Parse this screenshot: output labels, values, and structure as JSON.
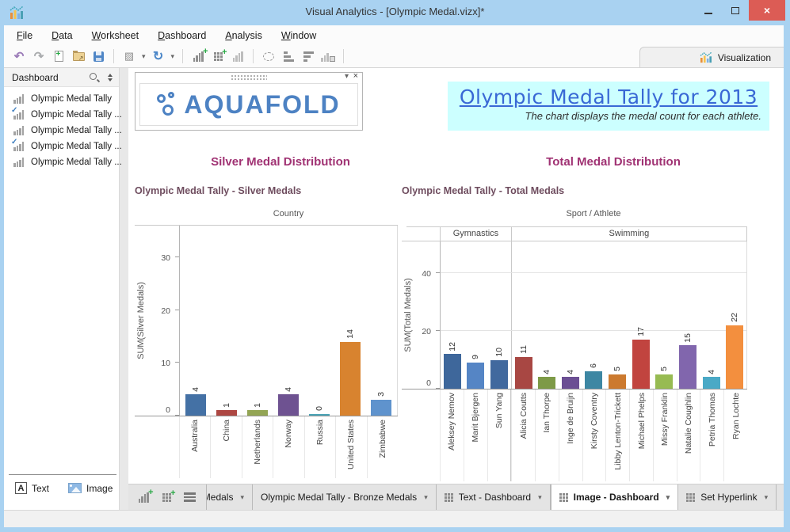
{
  "window": {
    "title": "Visual Analytics - [Olympic Medal.vizx]*"
  },
  "menu": {
    "items": [
      "File",
      "Data",
      "Worksheet",
      "Dashboard",
      "Analysis",
      "Window"
    ]
  },
  "toolbar": {
    "visualization_label": "Visualization",
    "icons": [
      "undo",
      "redo",
      "new-file",
      "open-folder",
      "save",
      "format",
      "refresh",
      "add-worksheet",
      "add-dashboard",
      "bar-chart",
      "lasso-select",
      "sort-ascending",
      "sort-descending",
      "export-chart"
    ]
  },
  "sidebar": {
    "header": "Dashboard",
    "items": [
      {
        "label": "Olympic Medal Tally",
        "checked": false
      },
      {
        "label": "Olympic Medal Tally ...",
        "checked": true
      },
      {
        "label": "Olympic Medal Tally ...",
        "checked": false
      },
      {
        "label": "Olympic Medal Tally ...",
        "checked": true
      },
      {
        "label": "Olympic Medal Tally ...",
        "checked": false
      }
    ],
    "buttons": {
      "text": "Text",
      "image": "Image"
    }
  },
  "dashboard": {
    "logo_text": "AQUAFOLD",
    "title": "Olympic Medal Tally for 2013",
    "subtitle": "The chart displays the medal count for each athlete.",
    "title_color": "#3968d5",
    "title_bg": "#ccffff",
    "heading_color": "#a03273"
  },
  "chart_data": [
    {
      "type": "bar",
      "section_heading": "Silver Medal Distribution",
      "title": "Olympic Medal Tally - Silver Medals",
      "xlabel": "Country",
      "ylabel": "SUM(Silver Medals)",
      "categories": [
        "Australia",
        "China",
        "Netherlands",
        "Norway",
        "Russia",
        "United States",
        "Zimbabwe"
      ],
      "values": [
        4,
        1,
        1,
        4,
        0,
        14,
        3
      ],
      "bar_colors": [
        "#4471a5",
        "#ad4742",
        "#93a554",
        "#6e5291",
        "#4aa3b5",
        "#d8832f",
        "#5f93cd"
      ],
      "yticks": [
        0,
        10,
        20,
        30
      ],
      "ylim": [
        0,
        36
      ],
      "grid": false,
      "legend": "none",
      "value_labels": true
    },
    {
      "type": "bar",
      "section_heading": "Total Medal Distribution",
      "title": "Olympic Medal Tally - Total Medals",
      "xlabel": "Sport / Athlete",
      "ylabel": "SUM(Total Medals)",
      "groups": [
        {
          "label": "Gymnastics",
          "categories": [
            "Aleksey Nemov",
            "Marit Bjergen",
            "Sun Yang"
          ],
          "values": [
            12,
            9,
            10
          ],
          "bar_colors": [
            "#3e679b",
            "#5585c5",
            "#41699e"
          ]
        },
        {
          "label": "Swimming",
          "categories": [
            "Alicia Coutts",
            "Ian Thorpe",
            "Inge de Bruijn",
            "Kirsty Coventry",
            "Libby Lenton-Trickett",
            "Michael Phelps",
            "Missy Franklin",
            "Natalie Coughlin",
            "Petria Thomas",
            "Ryan Lochte"
          ],
          "values": [
            11,
            4,
            4,
            6,
            5,
            17,
            5,
            15,
            4,
            22
          ],
          "bar_colors": [
            "#a84743",
            "#7d9a47",
            "#6b4f93",
            "#3d87a3",
            "#cc7a2f",
            "#c1443f",
            "#97bb52",
            "#8166ad",
            "#4aa9c6",
            "#f38f3e"
          ]
        }
      ],
      "yticks": [
        0,
        20,
        40
      ],
      "ylim": [
        0,
        51
      ],
      "grid": true,
      "legend": "none",
      "value_labels": true
    }
  ],
  "tabbar": {
    "tabs": [
      {
        "label": "Medals",
        "icon": "none",
        "active": false,
        "partial": true
      },
      {
        "label": "Olympic Medal Tally - Bronze Medals",
        "icon": "none",
        "active": false,
        "partial": false
      },
      {
        "label": "Text - Dashboard",
        "icon": "grid",
        "active": false,
        "partial": false
      },
      {
        "label": "Image - Dashboard",
        "icon": "grid",
        "active": true,
        "partial": false
      },
      {
        "label": "Set Hyperlink",
        "icon": "grid",
        "active": false,
        "partial": false
      }
    ]
  }
}
